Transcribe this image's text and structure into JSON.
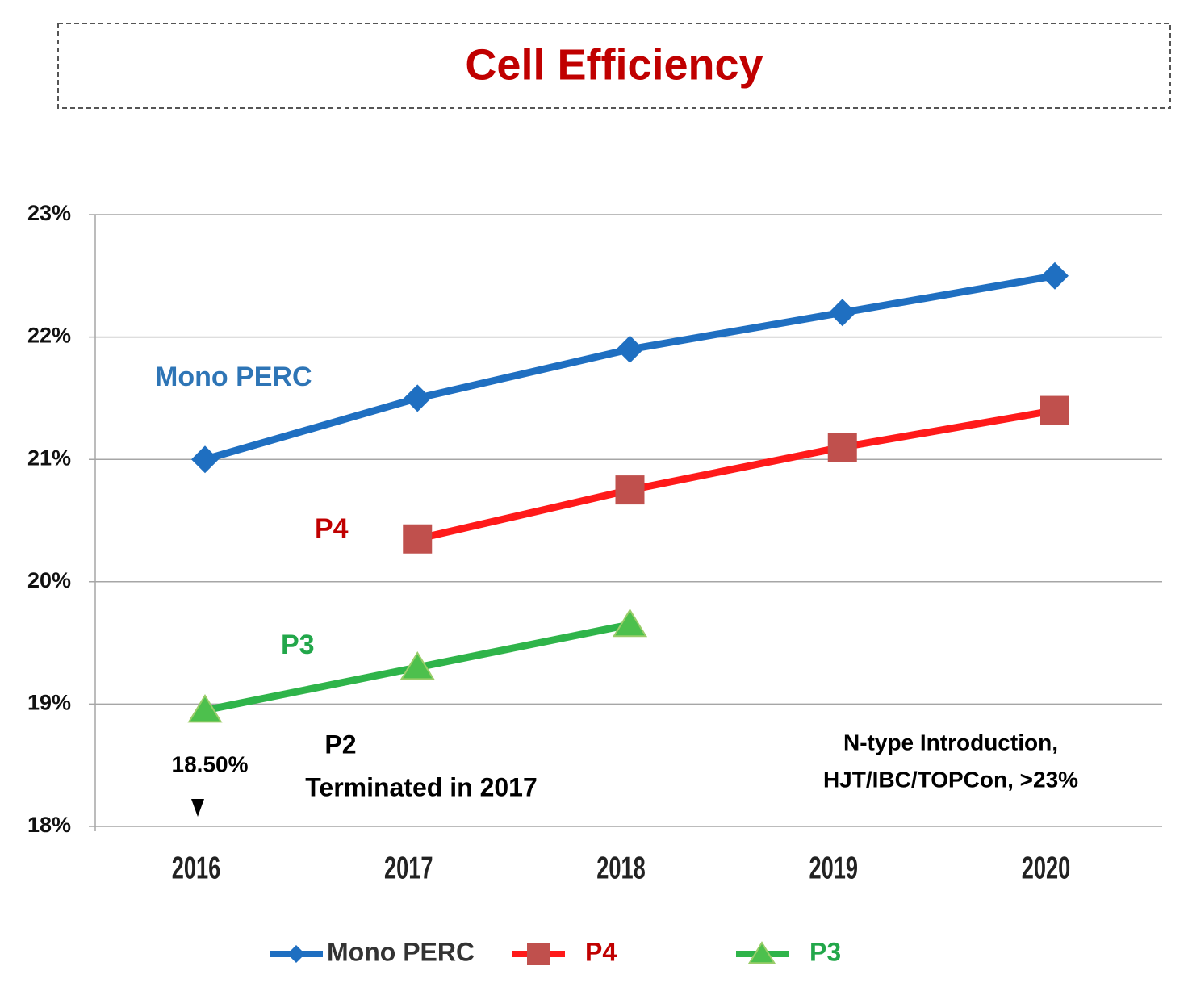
{
  "chart_data": {
    "type": "line",
    "title": "Cell Efficiency",
    "categories": [
      "2016",
      "2017",
      "2018",
      "2019",
      "2020"
    ],
    "series": [
      {
        "name": "Mono PERC",
        "color": "#1f6fc1",
        "marker": "diamond",
        "marker_color": "#1f6fc1",
        "legend_text_color": "#333333",
        "values": [
          21.0,
          21.5,
          21.9,
          22.2,
          22.5
        ]
      },
      {
        "name": "P4",
        "color": "#ff1a1a",
        "marker": "square",
        "marker_color": "#c0504d",
        "legend_text_color": "#c00000",
        "values": [
          null,
          20.35,
          20.75,
          21.1,
          21.4
        ]
      },
      {
        "name": "P3",
        "color": "#2fb44a",
        "marker": "triangle",
        "marker_color": "#4dc04d",
        "legend_text_color": "#22a74a",
        "values": [
          18.95,
          19.3,
          19.65,
          null,
          null
        ]
      }
    ],
    "ylim": [
      18,
      23
    ],
    "yticks": [
      {
        "value": 18,
        "label": "18%"
      },
      {
        "value": 19,
        "label": "19%"
      },
      {
        "value": 20,
        "label": "20%"
      },
      {
        "value": 21,
        "label": "21%"
      },
      {
        "value": 22,
        "label": "22%"
      },
      {
        "value": 23,
        "label": "23%"
      }
    ],
    "grid": true,
    "legend": "bottom",
    "annotations": [
      "18.50%",
      "P2",
      "Terminated in 2017",
      "N-type Introduction,",
      "HJT/IBC/TOPCon, >23%"
    ]
  }
}
